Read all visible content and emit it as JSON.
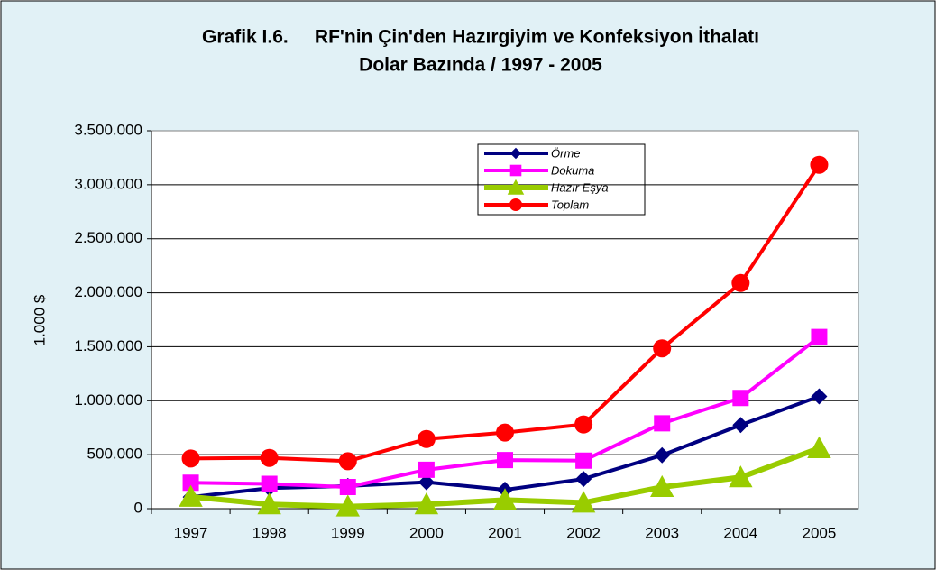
{
  "chart_data": {
    "type": "line",
    "title": [
      "Grafik I.6.     RF'nin Çin'den Hazırgiyim ve Konfeksiyon İthalatı",
      "Dolar Bazında / 1997 - 2005"
    ],
    "y_label": "1.000 $",
    "categories": [
      "1997",
      "1998",
      "1999",
      "2000",
      "2001",
      "2002",
      "2003",
      "2004",
      "2005"
    ],
    "series": [
      {
        "name": "Örme",
        "color": "#000080",
        "marker": "diamond",
        "values": [
          108000,
          190000,
          210000,
          245000,
          175000,
          275000,
          495000,
          775000,
          1040000
        ]
      },
      {
        "name": "Dokuma",
        "color": "#ff00ff",
        "marker": "square",
        "values": [
          240000,
          230000,
          200000,
          360000,
          450000,
          445000,
          790000,
          1025000,
          1590000
        ]
      },
      {
        "name": "Hazır Eşya",
        "color": "#99cc00",
        "marker": "triangle",
        "values": [
          110000,
          40000,
          20000,
          40000,
          80000,
          55000,
          200000,
          290000,
          560000
        ]
      },
      {
        "name": "Toplam",
        "color": "#ff0000",
        "marker": "circle",
        "values": [
          465000,
          470000,
          440000,
          645000,
          705000,
          780000,
          1485000,
          2090000,
          3185000
        ]
      }
    ],
    "ylim": [
      0,
      3500000
    ],
    "yticks": [
      0,
      {
        "value": 500000,
        "label": "500.000"
      },
      {
        "value": 1000000,
        "label": "1.000.000"
      },
      {
        "value": 1500000,
        "label": "1.500.000"
      },
      {
        "value": 2000000,
        "label": "2.000.000"
      },
      {
        "value": 2500000,
        "label": "2.500.000"
      },
      {
        "value": 3000000,
        "label": "3.000.000"
      },
      {
        "value": 3500000,
        "label": "3.500.000"
      }
    ],
    "grid": true
  }
}
